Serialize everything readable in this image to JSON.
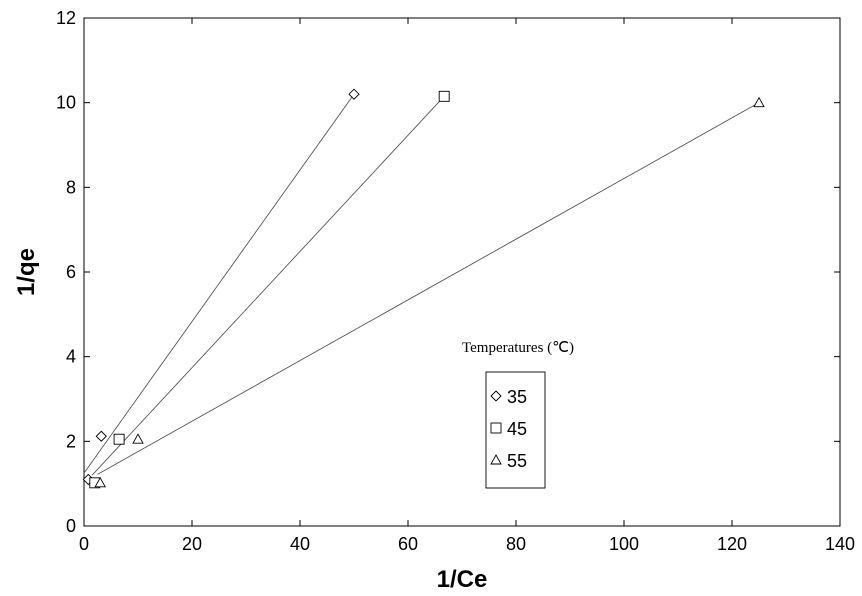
{
  "chart_data": {
    "type": "scatter",
    "xlabel": "1/Ce",
    "ylabel": "1/qe",
    "xlim": [
      0,
      140
    ],
    "ylim": [
      0,
      12
    ],
    "xticks": [
      0,
      20,
      40,
      60,
      80,
      100,
      120,
      140
    ],
    "yticks": [
      0,
      2,
      4,
      6,
      8,
      10,
      12
    ],
    "grid": false,
    "legend": {
      "title": "Temperatures (℃)",
      "placement": "center-right"
    },
    "series": [
      {
        "name": "35",
        "marker": "diamond",
        "points": [
          [
            0.8,
            1.1
          ],
          [
            3.2,
            2.12
          ],
          [
            50.0,
            10.2
          ]
        ],
        "fit_line": [
          [
            0.0,
            1.25
          ],
          [
            50.0,
            10.2
          ]
        ]
      },
      {
        "name": "45",
        "marker": "square",
        "points": [
          [
            2.0,
            1.02
          ],
          [
            6.5,
            2.05
          ],
          [
            66.7,
            10.15
          ]
        ],
        "fit_line": [
          [
            1.5,
            1.2
          ],
          [
            66.7,
            10.15
          ]
        ]
      },
      {
        "name": "55",
        "marker": "triangle",
        "points": [
          [
            3.0,
            1.02
          ],
          [
            10.0,
            2.05
          ],
          [
            125.0,
            10.0
          ]
        ],
        "fit_line": [
          [
            2.5,
            1.22
          ],
          [
            125.0,
            10.0
          ]
        ]
      }
    ]
  }
}
